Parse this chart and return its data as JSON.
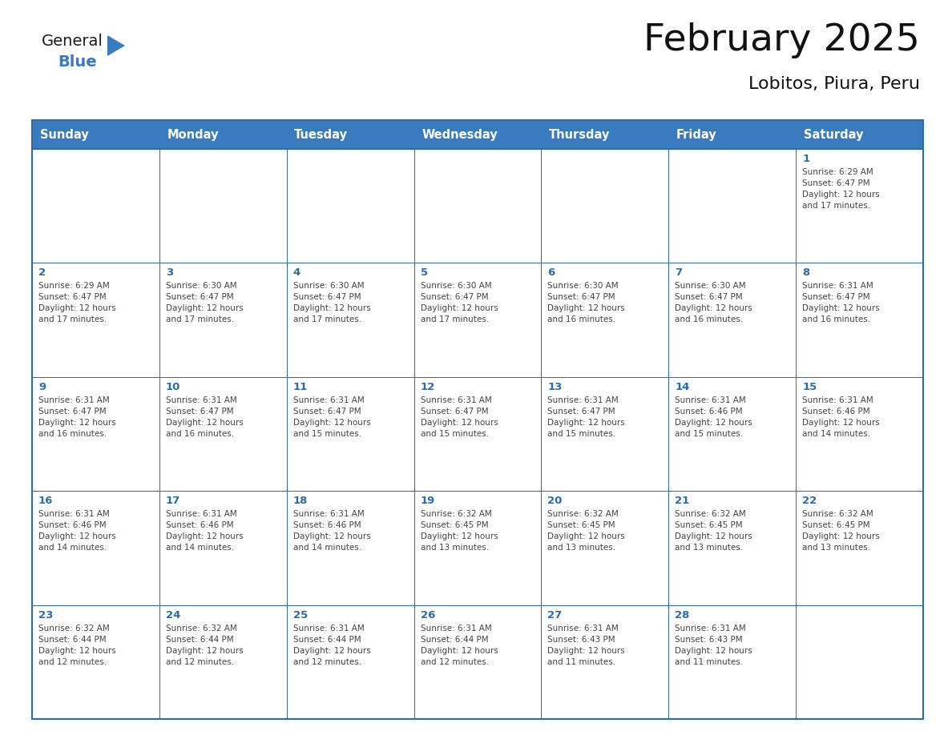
{
  "title": "February 2025",
  "subtitle": "Lobitos, Piura, Peru",
  "days_of_week": [
    "Sunday",
    "Monday",
    "Tuesday",
    "Wednesday",
    "Thursday",
    "Friday",
    "Saturday"
  ],
  "header_bg_color": "#3a7bbf",
  "header_text_color": "#ffffff",
  "cell_bg_color": "#ffffff",
  "cell_bg_alt": "#f5f7fa",
  "border_color": "#2d6aaa",
  "day_num_color": "#2d6aaa",
  "text_color": "#444444",
  "title_color": "#111111",
  "subtitle_color": "#111111",
  "logo_general_color": "#1a1a1a",
  "logo_blue_color": "#3a7bbf",
  "num_cols": 7,
  "num_rows": 5,
  "calendar_data": [
    {
      "day": 1,
      "col": 6,
      "row": 0,
      "sunrise": "6:29 AM",
      "sunset": "6:47 PM",
      "daylight_h": "12 hours",
      "daylight_m": "and 17 minutes."
    },
    {
      "day": 2,
      "col": 0,
      "row": 1,
      "sunrise": "6:29 AM",
      "sunset": "6:47 PM",
      "daylight_h": "12 hours",
      "daylight_m": "and 17 minutes."
    },
    {
      "day": 3,
      "col": 1,
      "row": 1,
      "sunrise": "6:30 AM",
      "sunset": "6:47 PM",
      "daylight_h": "12 hours",
      "daylight_m": "and 17 minutes."
    },
    {
      "day": 4,
      "col": 2,
      "row": 1,
      "sunrise": "6:30 AM",
      "sunset": "6:47 PM",
      "daylight_h": "12 hours",
      "daylight_m": "and 17 minutes."
    },
    {
      "day": 5,
      "col": 3,
      "row": 1,
      "sunrise": "6:30 AM",
      "sunset": "6:47 PM",
      "daylight_h": "12 hours",
      "daylight_m": "and 17 minutes."
    },
    {
      "day": 6,
      "col": 4,
      "row": 1,
      "sunrise": "6:30 AM",
      "sunset": "6:47 PM",
      "daylight_h": "12 hours",
      "daylight_m": "and 16 minutes."
    },
    {
      "day": 7,
      "col": 5,
      "row": 1,
      "sunrise": "6:30 AM",
      "sunset": "6:47 PM",
      "daylight_h": "12 hours",
      "daylight_m": "and 16 minutes."
    },
    {
      "day": 8,
      "col": 6,
      "row": 1,
      "sunrise": "6:31 AM",
      "sunset": "6:47 PM",
      "daylight_h": "12 hours",
      "daylight_m": "and 16 minutes."
    },
    {
      "day": 9,
      "col": 0,
      "row": 2,
      "sunrise": "6:31 AM",
      "sunset": "6:47 PM",
      "daylight_h": "12 hours",
      "daylight_m": "and 16 minutes."
    },
    {
      "day": 10,
      "col": 1,
      "row": 2,
      "sunrise": "6:31 AM",
      "sunset": "6:47 PM",
      "daylight_h": "12 hours",
      "daylight_m": "and 16 minutes."
    },
    {
      "day": 11,
      "col": 2,
      "row": 2,
      "sunrise": "6:31 AM",
      "sunset": "6:47 PM",
      "daylight_h": "12 hours",
      "daylight_m": "and 15 minutes."
    },
    {
      "day": 12,
      "col": 3,
      "row": 2,
      "sunrise": "6:31 AM",
      "sunset": "6:47 PM",
      "daylight_h": "12 hours",
      "daylight_m": "and 15 minutes."
    },
    {
      "day": 13,
      "col": 4,
      "row": 2,
      "sunrise": "6:31 AM",
      "sunset": "6:47 PM",
      "daylight_h": "12 hours",
      "daylight_m": "and 15 minutes."
    },
    {
      "day": 14,
      "col": 5,
      "row": 2,
      "sunrise": "6:31 AM",
      "sunset": "6:46 PM",
      "daylight_h": "12 hours",
      "daylight_m": "and 15 minutes."
    },
    {
      "day": 15,
      "col": 6,
      "row": 2,
      "sunrise": "6:31 AM",
      "sunset": "6:46 PM",
      "daylight_h": "12 hours",
      "daylight_m": "and 14 minutes."
    },
    {
      "day": 16,
      "col": 0,
      "row": 3,
      "sunrise": "6:31 AM",
      "sunset": "6:46 PM",
      "daylight_h": "12 hours",
      "daylight_m": "and 14 minutes."
    },
    {
      "day": 17,
      "col": 1,
      "row": 3,
      "sunrise": "6:31 AM",
      "sunset": "6:46 PM",
      "daylight_h": "12 hours",
      "daylight_m": "and 14 minutes."
    },
    {
      "day": 18,
      "col": 2,
      "row": 3,
      "sunrise": "6:31 AM",
      "sunset": "6:46 PM",
      "daylight_h": "12 hours",
      "daylight_m": "and 14 minutes."
    },
    {
      "day": 19,
      "col": 3,
      "row": 3,
      "sunrise": "6:32 AM",
      "sunset": "6:45 PM",
      "daylight_h": "12 hours",
      "daylight_m": "and 13 minutes."
    },
    {
      "day": 20,
      "col": 4,
      "row": 3,
      "sunrise": "6:32 AM",
      "sunset": "6:45 PM",
      "daylight_h": "12 hours",
      "daylight_m": "and 13 minutes."
    },
    {
      "day": 21,
      "col": 5,
      "row": 3,
      "sunrise": "6:32 AM",
      "sunset": "6:45 PM",
      "daylight_h": "12 hours",
      "daylight_m": "and 13 minutes."
    },
    {
      "day": 22,
      "col": 6,
      "row": 3,
      "sunrise": "6:32 AM",
      "sunset": "6:45 PM",
      "daylight_h": "12 hours",
      "daylight_m": "and 13 minutes."
    },
    {
      "day": 23,
      "col": 0,
      "row": 4,
      "sunrise": "6:32 AM",
      "sunset": "6:44 PM",
      "daylight_h": "12 hours",
      "daylight_m": "and 12 minutes."
    },
    {
      "day": 24,
      "col": 1,
      "row": 4,
      "sunrise": "6:32 AM",
      "sunset": "6:44 PM",
      "daylight_h": "12 hours",
      "daylight_m": "and 12 minutes."
    },
    {
      "day": 25,
      "col": 2,
      "row": 4,
      "sunrise": "6:31 AM",
      "sunset": "6:44 PM",
      "daylight_h": "12 hours",
      "daylight_m": "and 12 minutes."
    },
    {
      "day": 26,
      "col": 3,
      "row": 4,
      "sunrise": "6:31 AM",
      "sunset": "6:44 PM",
      "daylight_h": "12 hours",
      "daylight_m": "and 12 minutes."
    },
    {
      "day": 27,
      "col": 4,
      "row": 4,
      "sunrise": "6:31 AM",
      "sunset": "6:43 PM",
      "daylight_h": "12 hours",
      "daylight_m": "and 11 minutes."
    },
    {
      "day": 28,
      "col": 5,
      "row": 4,
      "sunrise": "6:31 AM",
      "sunset": "6:43 PM",
      "daylight_h": "12 hours",
      "daylight_m": "and 11 minutes."
    }
  ]
}
